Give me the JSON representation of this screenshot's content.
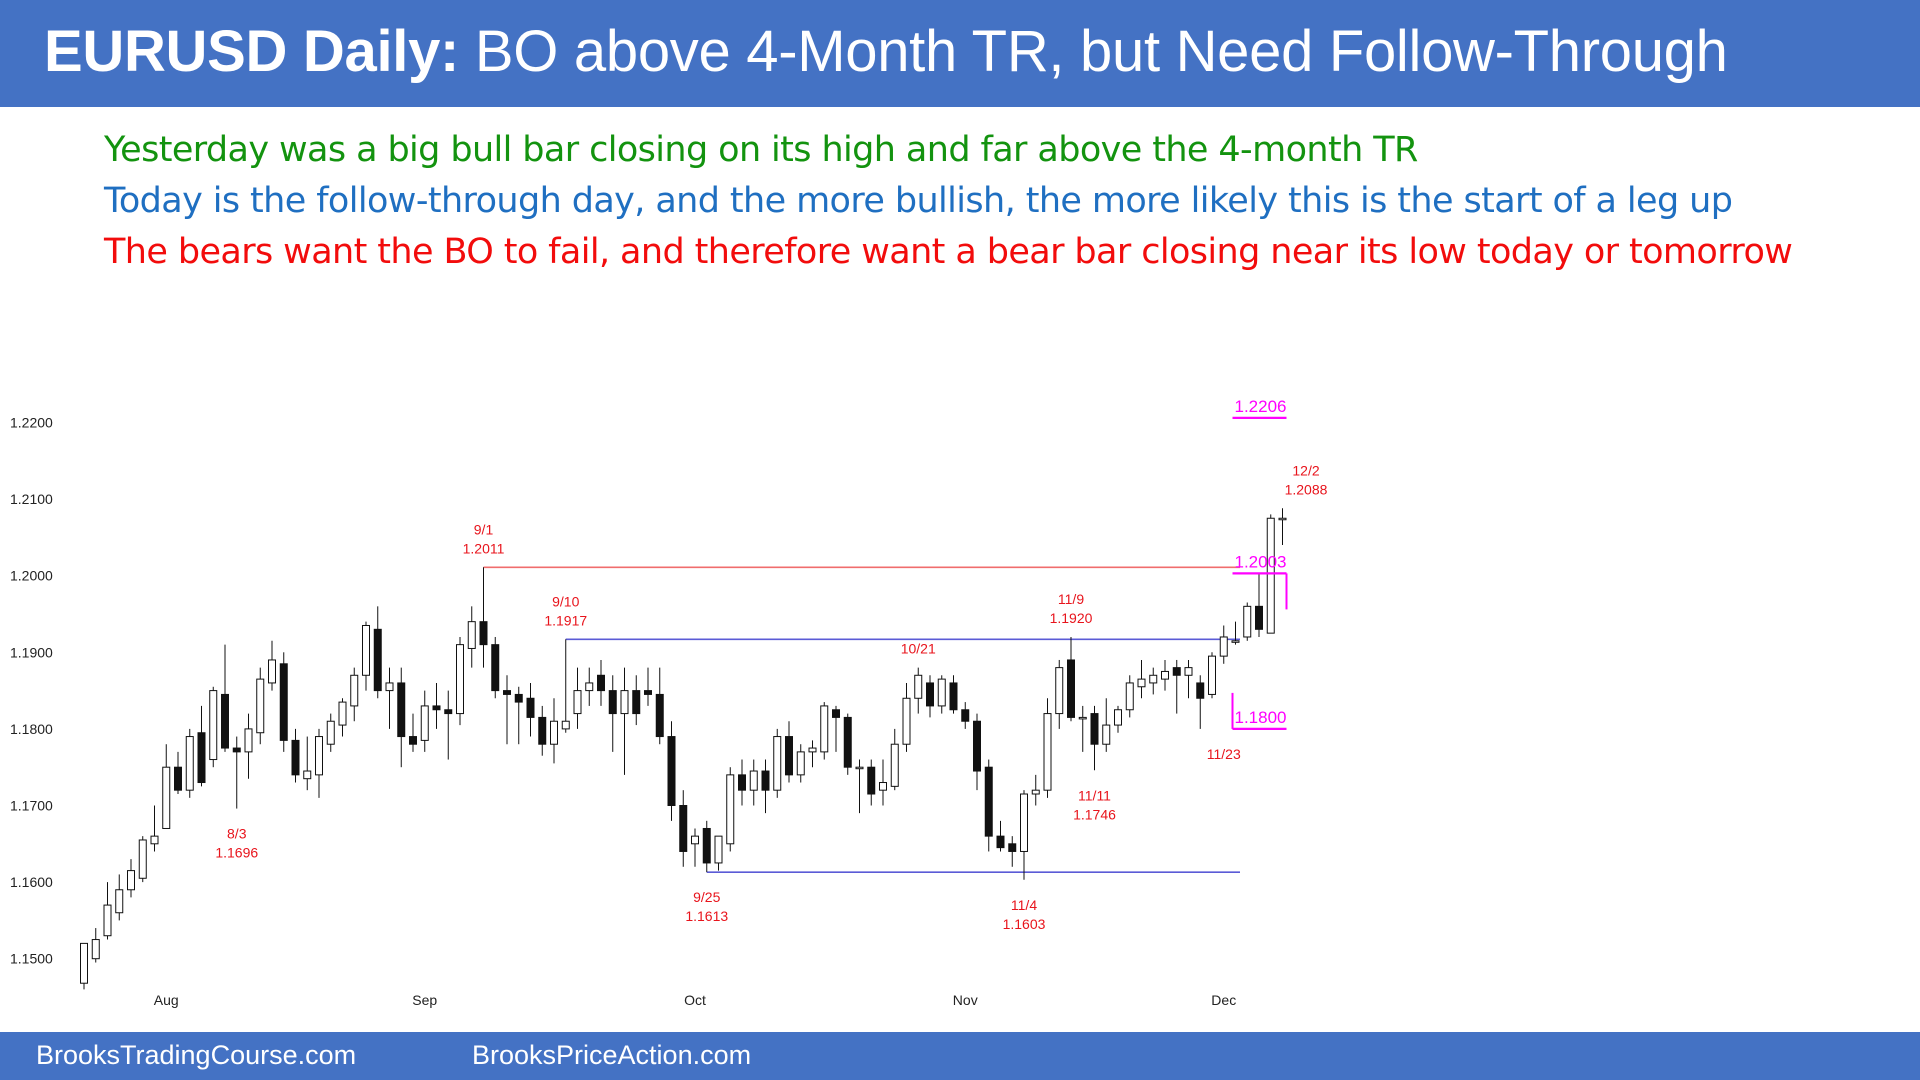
{
  "header": {
    "title_bold": "EURUSD Daily:",
    "title_rest": " BO above 4-Month TR, but Need Follow-Through"
  },
  "commentary": [
    {
      "text": "Yesterday was a big bull bar closing on its high and far above the 4-month TR",
      "color": "#13930f"
    },
    {
      "text": "Today is the follow-through day, and the more bullish, the more likely this is the start of a leg up",
      "color": "#1f6fc1"
    },
    {
      "text": "The bears want the BO to fail, and therefore want a bear bar closing near its low today or tomorrow",
      "color": "#f20c0c"
    }
  ],
  "footer": {
    "left": "BrooksTradingCourse.com",
    "right": "BrooksPriceAction.com"
  },
  "colors": {
    "bar": "#4472c4",
    "annotation": "#e8141c",
    "target": "#ff00ff",
    "level_blue": "#5b5bd6",
    "level_red": "#f06d6d"
  },
  "chart_data": {
    "type": "candlestick",
    "title": "",
    "y_ticks": [
      "1.2200",
      "1.2100",
      "1.2000",
      "1.1900",
      "1.1800",
      "1.1700",
      "1.1600",
      "1.1500"
    ],
    "x_ticks": [
      "Aug",
      "Sep",
      "Oct",
      "Nov",
      "Dec"
    ],
    "ylim": [
      1.146,
      1.224
    ],
    "candles": [
      {
        "o": 1.1468,
        "h": 1.152,
        "l": 1.146,
        "c": 1.152
      },
      {
        "o": 1.15,
        "h": 1.154,
        "l": 1.1495,
        "c": 1.1525
      },
      {
        "o": 1.153,
        "h": 1.16,
        "l": 1.1525,
        "c": 1.157
      },
      {
        "o": 1.156,
        "h": 1.161,
        "l": 1.155,
        "c": 1.159
      },
      {
        "o": 1.159,
        "h": 1.163,
        "l": 1.158,
        "c": 1.1615
      },
      {
        "o": 1.1605,
        "h": 1.166,
        "l": 1.16,
        "c": 1.1655
      },
      {
        "o": 1.165,
        "h": 1.17,
        "l": 1.164,
        "c": 1.166
      },
      {
        "o": 1.167,
        "h": 1.178,
        "l": 1.167,
        "c": 1.175
      },
      {
        "o": 1.175,
        "h": 1.177,
        "l": 1.1715,
        "c": 1.172
      },
      {
        "o": 1.172,
        "h": 1.18,
        "l": 1.171,
        "c": 1.179
      },
      {
        "o": 1.1795,
        "h": 1.183,
        "l": 1.1725,
        "c": 1.173
      },
      {
        "o": 1.176,
        "h": 1.1855,
        "l": 1.175,
        "c": 1.185
      },
      {
        "o": 1.1845,
        "h": 1.191,
        "l": 1.177,
        "c": 1.1775
      },
      {
        "o": 1.1775,
        "h": 1.179,
        "l": 1.1696,
        "c": 1.177
      },
      {
        "o": 1.177,
        "h": 1.182,
        "l": 1.1735,
        "c": 1.18
      },
      {
        "o": 1.1795,
        "h": 1.188,
        "l": 1.178,
        "c": 1.1865
      },
      {
        "o": 1.186,
        "h": 1.1915,
        "l": 1.185,
        "c": 1.189
      },
      {
        "o": 1.1885,
        "h": 1.19,
        "l": 1.177,
        "c": 1.1785
      },
      {
        "o": 1.1785,
        "h": 1.18,
        "l": 1.173,
        "c": 1.174
      },
      {
        "o": 1.1735,
        "h": 1.179,
        "l": 1.172,
        "c": 1.1745
      },
      {
        "o": 1.174,
        "h": 1.18,
        "l": 1.171,
        "c": 1.179
      },
      {
        "o": 1.178,
        "h": 1.182,
        "l": 1.177,
        "c": 1.181
      },
      {
        "o": 1.1805,
        "h": 1.184,
        "l": 1.179,
        "c": 1.1835
      },
      {
        "o": 1.183,
        "h": 1.188,
        "l": 1.181,
        "c": 1.187
      },
      {
        "o": 1.187,
        "h": 1.194,
        "l": 1.185,
        "c": 1.1935
      },
      {
        "o": 1.193,
        "h": 1.196,
        "l": 1.184,
        "c": 1.185
      },
      {
        "o": 1.185,
        "h": 1.188,
        "l": 1.18,
        "c": 1.186
      },
      {
        "o": 1.186,
        "h": 1.188,
        "l": 1.175,
        "c": 1.179
      },
      {
        "o": 1.179,
        "h": 1.182,
        "l": 1.177,
        "c": 1.178
      },
      {
        "o": 1.1785,
        "h": 1.185,
        "l": 1.177,
        "c": 1.183
      },
      {
        "o": 1.183,
        "h": 1.186,
        "l": 1.18,
        "c": 1.1825
      },
      {
        "o": 1.1825,
        "h": 1.185,
        "l": 1.176,
        "c": 1.182
      },
      {
        "o": 1.182,
        "h": 1.192,
        "l": 1.1805,
        "c": 1.191
      },
      {
        "o": 1.1905,
        "h": 1.196,
        "l": 1.188,
        "c": 1.194
      },
      {
        "o": 1.194,
        "h": 1.2011,
        "l": 1.188,
        "c": 1.191
      },
      {
        "o": 1.191,
        "h": 1.192,
        "l": 1.184,
        "c": 1.185
      },
      {
        "o": 1.185,
        "h": 1.187,
        "l": 1.178,
        "c": 1.1845
      },
      {
        "o": 1.1845,
        "h": 1.1855,
        "l": 1.178,
        "c": 1.1835
      },
      {
        "o": 1.184,
        "h": 1.186,
        "l": 1.179,
        "c": 1.1815
      },
      {
        "o": 1.1815,
        "h": 1.183,
        "l": 1.1765,
        "c": 1.178
      },
      {
        "o": 1.178,
        "h": 1.184,
        "l": 1.1755,
        "c": 1.181
      },
      {
        "o": 1.18,
        "h": 1.1917,
        "l": 1.1795,
        "c": 1.181
      },
      {
        "o": 1.182,
        "h": 1.188,
        "l": 1.18,
        "c": 1.185
      },
      {
        "o": 1.185,
        "h": 1.188,
        "l": 1.183,
        "c": 1.186
      },
      {
        "o": 1.187,
        "h": 1.189,
        "l": 1.183,
        "c": 1.185
      },
      {
        "o": 1.185,
        "h": 1.187,
        "l": 1.177,
        "c": 1.182
      },
      {
        "o": 1.182,
        "h": 1.188,
        "l": 1.174,
        "c": 1.185
      },
      {
        "o": 1.185,
        "h": 1.187,
        "l": 1.1805,
        "c": 1.182
      },
      {
        "o": 1.185,
        "h": 1.188,
        "l": 1.183,
        "c": 1.1845
      },
      {
        "o": 1.1845,
        "h": 1.188,
        "l": 1.178,
        "c": 1.179
      },
      {
        "o": 1.179,
        "h": 1.181,
        "l": 1.168,
        "c": 1.17
      },
      {
        "o": 1.17,
        "h": 1.172,
        "l": 1.162,
        "c": 1.164
      },
      {
        "o": 1.165,
        "h": 1.167,
        "l": 1.162,
        "c": 1.166
      },
      {
        "o": 1.167,
        "h": 1.168,
        "l": 1.1613,
        "c": 1.1625
      },
      {
        "o": 1.1625,
        "h": 1.166,
        "l": 1.1615,
        "c": 1.166
      },
      {
        "o": 1.165,
        "h": 1.175,
        "l": 1.164,
        "c": 1.174
      },
      {
        "o": 1.174,
        "h": 1.176,
        "l": 1.17,
        "c": 1.172
      },
      {
        "o": 1.172,
        "h": 1.176,
        "l": 1.17,
        "c": 1.1745
      },
      {
        "o": 1.1745,
        "h": 1.176,
        "l": 1.169,
        "c": 1.172
      },
      {
        "o": 1.172,
        "h": 1.18,
        "l": 1.171,
        "c": 1.179
      },
      {
        "o": 1.179,
        "h": 1.181,
        "l": 1.173,
        "c": 1.174
      },
      {
        "o": 1.174,
        "h": 1.178,
        "l": 1.173,
        "c": 1.177
      },
      {
        "o": 1.177,
        "h": 1.1785,
        "l": 1.175,
        "c": 1.1775
      },
      {
        "o": 1.177,
        "h": 1.1835,
        "l": 1.176,
        "c": 1.183
      },
      {
        "o": 1.1825,
        "h": 1.183,
        "l": 1.177,
        "c": 1.1815
      },
      {
        "o": 1.1815,
        "h": 1.182,
        "l": 1.174,
        "c": 1.175
      },
      {
        "o": 1.175,
        "h": 1.176,
        "l": 1.169,
        "c": 1.175
      },
      {
        "o": 1.175,
        "h": 1.176,
        "l": 1.17,
        "c": 1.1715
      },
      {
        "o": 1.172,
        "h": 1.176,
        "l": 1.17,
        "c": 1.173
      },
      {
        "o": 1.1725,
        "h": 1.18,
        "l": 1.172,
        "c": 1.178
      },
      {
        "o": 1.178,
        "h": 1.186,
        "l": 1.177,
        "c": 1.184
      },
      {
        "o": 1.184,
        "h": 1.188,
        "l": 1.182,
        "c": 1.187
      },
      {
        "o": 1.186,
        "h": 1.187,
        "l": 1.1815,
        "c": 1.183
      },
      {
        "o": 1.183,
        "h": 1.187,
        "l": 1.182,
        "c": 1.1865
      },
      {
        "o": 1.186,
        "h": 1.187,
        "l": 1.182,
        "c": 1.1825
      },
      {
        "o": 1.1825,
        "h": 1.1835,
        "l": 1.18,
        "c": 1.181
      },
      {
        "o": 1.181,
        "h": 1.182,
        "l": 1.172,
        "c": 1.1745
      },
      {
        "o": 1.175,
        "h": 1.176,
        "l": 1.164,
        "c": 1.166
      },
      {
        "o": 1.166,
        "h": 1.168,
        "l": 1.164,
        "c": 1.1645
      },
      {
        "o": 1.165,
        "h": 1.166,
        "l": 1.162,
        "c": 1.164
      },
      {
        "o": 1.164,
        "h": 1.172,
        "l": 1.1603,
        "c": 1.1715
      },
      {
        "o": 1.1715,
        "h": 1.174,
        "l": 1.17,
        "c": 1.172
      },
      {
        "o": 1.172,
        "h": 1.184,
        "l": 1.171,
        "c": 1.182
      },
      {
        "o": 1.182,
        "h": 1.189,
        "l": 1.18,
        "c": 1.188
      },
      {
        "o": 1.189,
        "h": 1.192,
        "l": 1.181,
        "c": 1.1815
      },
      {
        "o": 1.1815,
        "h": 1.183,
        "l": 1.177,
        "c": 1.1815
      },
      {
        "o": 1.182,
        "h": 1.183,
        "l": 1.1746,
        "c": 1.178
      },
      {
        "o": 1.178,
        "h": 1.184,
        "l": 1.177,
        "c": 1.1805
      },
      {
        "o": 1.1805,
        "h": 1.183,
        "l": 1.1795,
        "c": 1.1825
      },
      {
        "o": 1.1825,
        "h": 1.187,
        "l": 1.1815,
        "c": 1.186
      },
      {
        "o": 1.1855,
        "h": 1.189,
        "l": 1.184,
        "c": 1.1865
      },
      {
        "o": 1.186,
        "h": 1.188,
        "l": 1.1845,
        "c": 1.187
      },
      {
        "o": 1.1865,
        "h": 1.189,
        "l": 1.185,
        "c": 1.1875
      },
      {
        "o": 1.188,
        "h": 1.189,
        "l": 1.182,
        "c": 1.187
      },
      {
        "o": 1.187,
        "h": 1.189,
        "l": 1.184,
        "c": 1.188
      },
      {
        "o": 1.186,
        "h": 1.187,
        "l": 1.18,
        "c": 1.184
      },
      {
        "o": 1.1845,
        "h": 1.19,
        "l": 1.184,
        "c": 1.1895
      },
      {
        "o": 1.1895,
        "h": 1.1935,
        "l": 1.1885,
        "c": 1.192
      },
      {
        "o": 1.1915,
        "h": 1.194,
        "l": 1.191,
        "c": 1.1915
      },
      {
        "o": 1.192,
        "h": 1.1965,
        "l": 1.1915,
        "c": 1.196
      },
      {
        "o": 1.196,
        "h": 1.2003,
        "l": 1.192,
        "c": 1.193
      },
      {
        "o": 1.1925,
        "h": 1.208,
        "l": 1.1925,
        "c": 1.2075
      },
      {
        "o": 1.2075,
        "h": 1.2088,
        "l": 1.204,
        "c": 1.2075
      }
    ],
    "horizontal_levels": [
      {
        "value": 1.2011,
        "color": "red",
        "from_index": 34,
        "to_index": 104
      },
      {
        "value": 1.1917,
        "color": "blue",
        "from_index": 41,
        "to_index": 104
      },
      {
        "value": 1.1613,
        "color": "blue",
        "from_index": 53,
        "to_index": 104
      }
    ],
    "target_markers": [
      {
        "label": "1.2206",
        "value": 1.2206,
        "from_index": 98,
        "to_index": 102
      },
      {
        "label": "1.2003",
        "value": 1.2003,
        "from_index": 98,
        "to_index": 102
      },
      {
        "label": "1.1800",
        "value": 1.18,
        "from_index": 98,
        "to_index": 102
      }
    ],
    "annotations": [
      {
        "lines": [
          "9/1",
          "1.2011"
        ],
        "index": 34,
        "value": 1.2011,
        "pos": "above"
      },
      {
        "lines": [
          "9/10",
          "1.1917"
        ],
        "index": 41,
        "value": 1.1917,
        "pos": "above"
      },
      {
        "lines": [
          "10/21"
        ],
        "index": 71,
        "value": 1.188,
        "pos": "above"
      },
      {
        "lines": [
          "11/9",
          "1.1920"
        ],
        "index": 84,
        "value": 1.192,
        "pos": "above"
      },
      {
        "lines": [
          "12/2",
          "1.2088"
        ],
        "index": 104,
        "value": 1.2088,
        "pos": "above"
      },
      {
        "lines": [
          "8/3",
          "1.1696"
        ],
        "index": 13,
        "value": 1.1696,
        "pos": "below"
      },
      {
        "lines": [
          "9/25",
          "1.1613"
        ],
        "index": 53,
        "value": 1.1613,
        "pos": "below"
      },
      {
        "lines": [
          "11/4",
          "1.1603"
        ],
        "index": 80,
        "value": 1.1603,
        "pos": "below"
      },
      {
        "lines": [
          "11/11",
          "1.1746"
        ],
        "index": 86,
        "value": 1.1746,
        "pos": "below"
      },
      {
        "lines": [
          "11/23"
        ],
        "index": 97,
        "value": 1.18,
        "pos": "below"
      }
    ],
    "grid": false,
    "legend": "none"
  }
}
